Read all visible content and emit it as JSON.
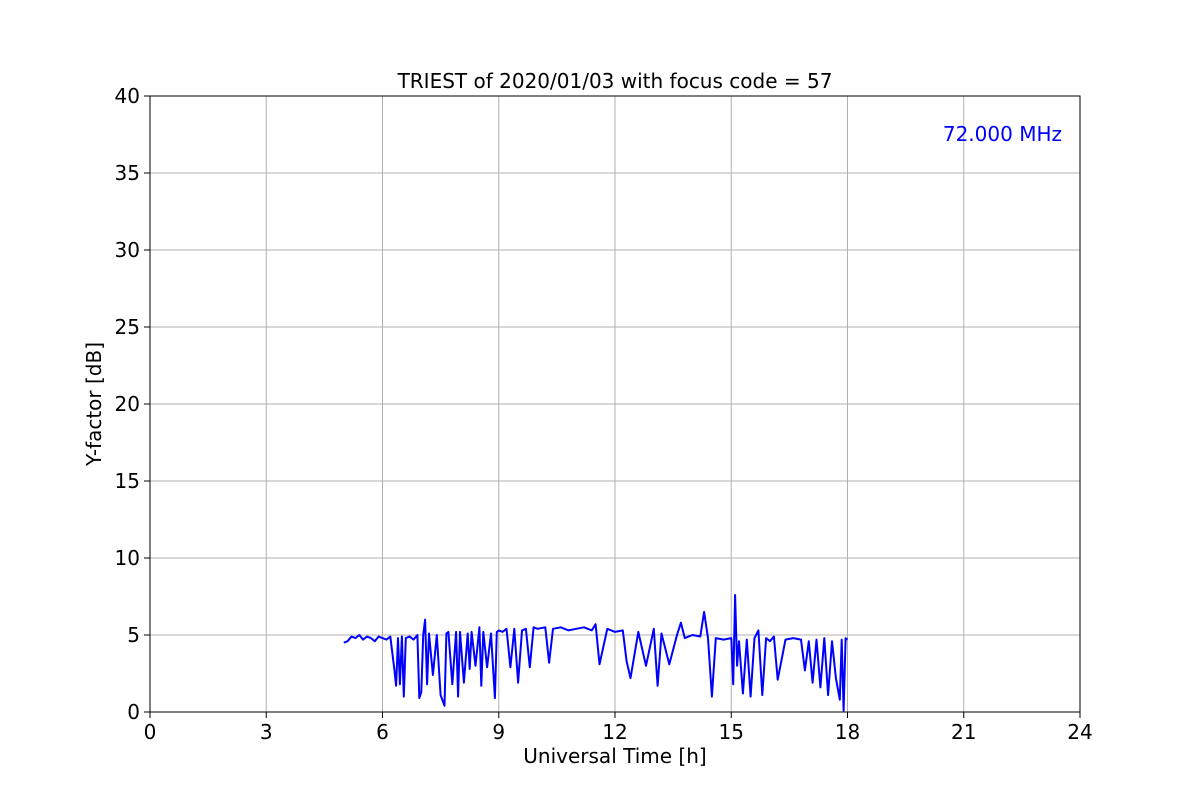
{
  "chart_data": {
    "type": "line",
    "title": "TRIEST of 2020/01/03 with focus code = 57",
    "xlabel": "Universal Time [h]",
    "ylabel": "Y-factor [dB]",
    "xlim": [
      0,
      24
    ],
    "ylim": [
      0,
      40
    ],
    "xticks": [
      0,
      3,
      6,
      9,
      12,
      15,
      18,
      21,
      24
    ],
    "yticks": [
      0,
      5,
      10,
      15,
      20,
      25,
      30,
      35,
      40
    ],
    "grid": true,
    "annotation": {
      "text": "72.000 MHz",
      "color": "#0000ff",
      "placement": "top-right"
    },
    "series": [
      {
        "color": "#0000ff",
        "x": [
          5.0,
          5.1,
          5.2,
          5.3,
          5.4,
          5.5,
          5.6,
          5.7,
          5.8,
          5.9,
          6.0,
          6.1,
          6.2,
          6.3,
          6.35,
          6.4,
          6.45,
          6.5,
          6.55,
          6.6,
          6.7,
          6.8,
          6.9,
          6.95,
          7.0,
          7.05,
          7.1,
          7.15,
          7.2,
          7.3,
          7.4,
          7.5,
          7.6,
          7.65,
          7.7,
          7.8,
          7.9,
          7.95,
          8.0,
          8.1,
          8.2,
          8.25,
          8.3,
          8.4,
          8.5,
          8.55,
          8.6,
          8.7,
          8.8,
          8.9,
          8.95,
          9.0,
          9.1,
          9.2,
          9.3,
          9.4,
          9.5,
          9.6,
          9.7,
          9.8,
          9.9,
          10.0,
          10.2,
          10.3,
          10.4,
          10.6,
          10.8,
          11.0,
          11.2,
          11.4,
          11.5,
          11.6,
          11.8,
          12.0,
          12.2,
          12.3,
          12.4,
          12.6,
          12.8,
          13.0,
          13.1,
          13.2,
          13.4,
          13.6,
          13.7,
          13.8,
          14.0,
          14.2,
          14.3,
          14.4,
          14.5,
          14.6,
          14.8,
          15.0,
          15.05,
          15.1,
          15.15,
          15.2,
          15.3,
          15.4,
          15.5,
          15.6,
          15.7,
          15.8,
          15.9,
          16.0,
          16.1,
          16.2,
          16.4,
          16.6,
          16.8,
          16.9,
          17.0,
          17.1,
          17.2,
          17.3,
          17.4,
          17.5,
          17.6,
          17.7,
          17.8,
          17.85,
          17.9,
          17.95,
          18.0
        ],
        "y": [
          4.5,
          4.6,
          4.9,
          4.8,
          5.0,
          4.7,
          4.9,
          4.8,
          4.6,
          4.9,
          4.8,
          4.7,
          4.9,
          2.9,
          1.7,
          4.8,
          1.8,
          4.9,
          1.0,
          4.8,
          4.9,
          4.7,
          5.0,
          0.9,
          1.3,
          5.0,
          6.0,
          1.8,
          5.1,
          2.4,
          5.0,
          1.1,
          0.4,
          5.1,
          5.2,
          1.8,
          5.2,
          1.0,
          5.2,
          1.9,
          5.1,
          2.8,
          5.2,
          3.0,
          5.5,
          1.7,
          5.2,
          2.9,
          5.1,
          0.9,
          5.2,
          5.3,
          5.2,
          5.4,
          2.9,
          5.4,
          1.9,
          5.3,
          5.4,
          2.9,
          5.5,
          5.4,
          5.5,
          3.2,
          5.4,
          5.5,
          5.3,
          5.4,
          5.5,
          5.3,
          5.7,
          3.1,
          5.4,
          5.2,
          5.3,
          3.3,
          2.2,
          5.2,
          3.0,
          5.4,
          1.7,
          5.1,
          3.1,
          5.0,
          5.8,
          4.8,
          5.0,
          4.9,
          6.5,
          4.8,
          1.0,
          4.8,
          4.7,
          4.8,
          1.8,
          7.6,
          3.0,
          4.6,
          1.2,
          4.7,
          1.0,
          4.8,
          5.3,
          1.1,
          4.8,
          4.6,
          4.9,
          2.1,
          4.7,
          4.8,
          4.7,
          2.7,
          4.6,
          1.9,
          4.7,
          1.6,
          4.8,
          1.1,
          4.6,
          2.2,
          0.8,
          4.7,
          0.1,
          4.8,
          4.7
        ]
      }
    ]
  }
}
